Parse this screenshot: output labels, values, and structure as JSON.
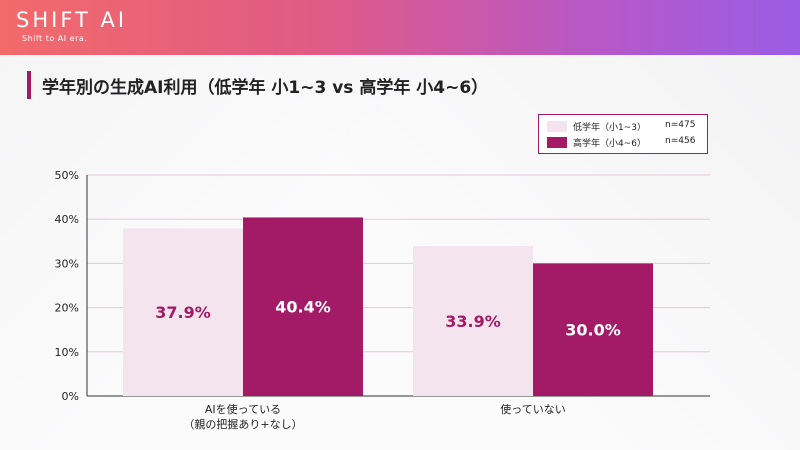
{
  "header": {
    "brand": "SHIFT AI",
    "tagline": "Shift to AI era."
  },
  "colors": {
    "accent": "#a31a66",
    "light_series": "#f4e4ee",
    "dark_series": "#a31a66"
  },
  "chart_data": {
    "type": "bar",
    "title": "学年別の生成AI利用（低学年 小1~3 vs 高学年 小4~6）",
    "categories": [
      [
        "AIを使っている",
        "（親の把握あり+なし）"
      ],
      [
        "使っていない"
      ]
    ],
    "series": [
      {
        "name": "低学年（小1~3）",
        "n": "n=475",
        "values": [
          37.9,
          33.9
        ]
      },
      {
        "name": "高学年（小4~6）",
        "n": "n=456",
        "values": [
          40.4,
          30.0
        ]
      }
    ],
    "data_labels": [
      [
        "37.9%",
        "33.9%"
      ],
      [
        "40.4%",
        "30.0%"
      ]
    ],
    "ylim": [
      0,
      50
    ],
    "yticks": [
      "0%",
      "10%",
      "20%",
      "30%",
      "40%",
      "50%"
    ],
    "grid": true,
    "legend_position": "top-right"
  }
}
